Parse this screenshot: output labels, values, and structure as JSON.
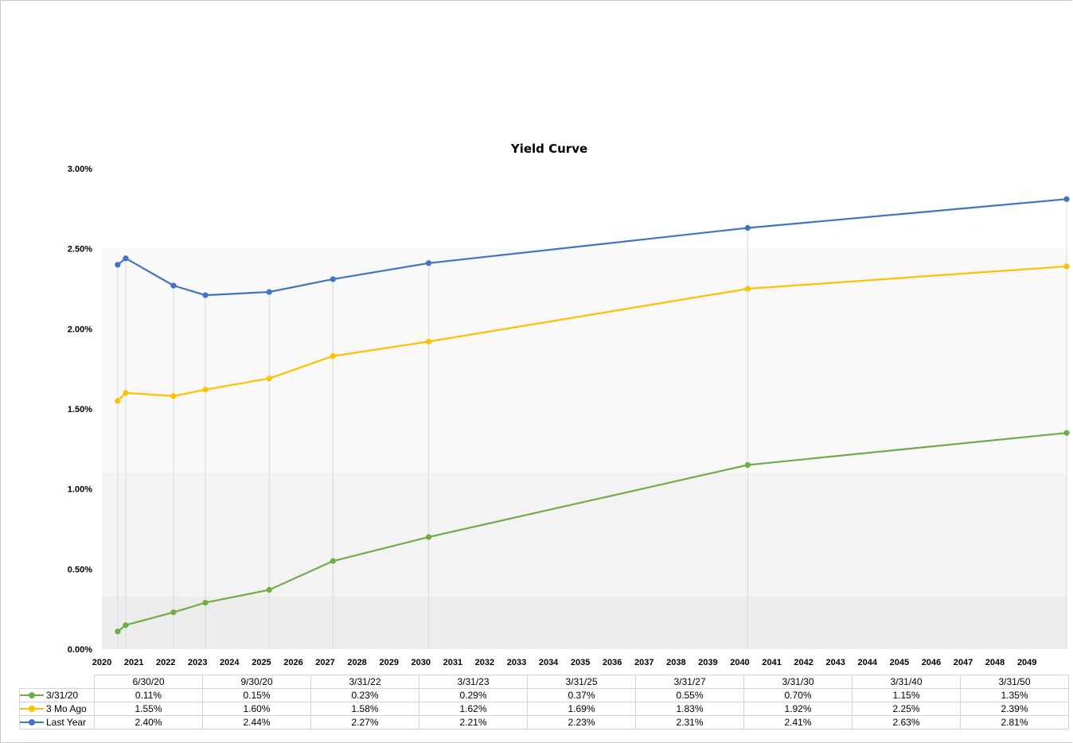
{
  "chart_data": {
    "type": "line",
    "title": "Yield Curve",
    "xlabel": "",
    "ylabel": "",
    "x_ticks": [
      "2020",
      "2021",
      "2022",
      "2023",
      "2024",
      "2025",
      "2026",
      "2027",
      "2028",
      "2029",
      "2030",
      "2031",
      "2032",
      "2033",
      "2034",
      "2035",
      "2036",
      "2037",
      "2038",
      "2039",
      "2040",
      "2041",
      "2042",
      "2043",
      "2044",
      "2045",
      "2046",
      "2047",
      "2048",
      "2049"
    ],
    "y_ticks": [
      "0.00%",
      "0.50%",
      "1.00%",
      "1.50%",
      "2.00%",
      "2.50%",
      "3.00%"
    ],
    "ylim": [
      0,
      3
    ],
    "xlim": [
      "2020-01-01",
      "2050-03-31"
    ],
    "x_type": "date",
    "x": [
      "2020-06-30",
      "2020-09-30",
      "2022-03-31",
      "2023-03-31",
      "2025-03-31",
      "2027-03-31",
      "2030-03-31",
      "2040-03-31",
      "2050-03-31"
    ],
    "categories": [
      "6/30/20",
      "9/30/20",
      "3/31/22",
      "3/31/23",
      "3/31/25",
      "3/31/27",
      "3/31/30",
      "3/31/40",
      "3/31/50"
    ],
    "series": [
      {
        "name": "3/31/20",
        "color": "#70ad47",
        "values": [
          0.11,
          0.15,
          0.23,
          0.29,
          0.37,
          0.55,
          0.7,
          1.15,
          1.35
        ],
        "labels": [
          "0.11%",
          "0.15%",
          "0.23%",
          "0.29%",
          "0.37%",
          "0.55%",
          "0.70%",
          "1.15%",
          "1.35%"
        ]
      },
      {
        "name": "3 Mo Ago",
        "color": "#ffc000",
        "values": [
          1.55,
          1.6,
          1.58,
          1.62,
          1.69,
          1.83,
          1.92,
          2.25,
          2.39
        ],
        "labels": [
          "1.55%",
          "1.60%",
          "1.58%",
          "1.62%",
          "1.69%",
          "1.83%",
          "1.92%",
          "2.25%",
          "2.39%"
        ]
      },
      {
        "name": "Last Year",
        "color": "#4472c4",
        "values": [
          2.4,
          2.44,
          2.27,
          2.21,
          2.23,
          2.31,
          2.41,
          2.63,
          2.81
        ],
        "labels": [
          "2.40%",
          "2.44%",
          "2.27%",
          "2.21%",
          "2.23%",
          "2.31%",
          "2.41%",
          "2.63%",
          "2.81%"
        ]
      }
    ],
    "grid": false,
    "legend": "table-bottom"
  }
}
